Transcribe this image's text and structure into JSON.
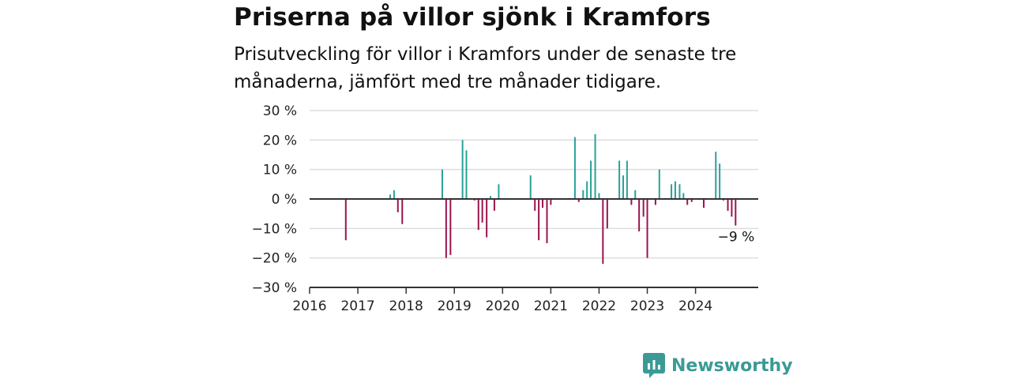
{
  "title": "Priserna på villor sjönk i Kramfors",
  "subtitle": "Prisutveckling för villor i Kramfors under de senaste tre månaderna, jämfört med tre månader tidigare.",
  "brand": {
    "name": "Newsworthy",
    "icon": "newsworthy-logo-icon",
    "color": "#3b9a95"
  },
  "colors": {
    "positive": "#2aa198",
    "negative": "#99144f",
    "grid": "#dddddd",
    "axis": "#333333"
  },
  "chart_data": {
    "type": "bar",
    "x_unit": "year",
    "xlim": [
      2016,
      2025.3
    ],
    "ylim": [
      -30,
      30
    ],
    "y_ticks": [
      {
        "value": 30,
        "label": "30 %"
      },
      {
        "value": 20,
        "label": "20 %"
      },
      {
        "value": 10,
        "label": "10 %"
      },
      {
        "value": 0,
        "label": "0 %"
      },
      {
        "value": -10,
        "label": "−10 %"
      },
      {
        "value": -20,
        "label": "−20 %"
      },
      {
        "value": -30,
        "label": "−30 %"
      }
    ],
    "x_ticks": [
      {
        "value": 2016,
        "label": "2016"
      },
      {
        "value": 2017,
        "label": "2017"
      },
      {
        "value": 2018,
        "label": "2018"
      },
      {
        "value": 2019,
        "label": "2019"
      },
      {
        "value": 2020,
        "label": "2020"
      },
      {
        "value": 2021,
        "label": "2021"
      },
      {
        "value": 2022,
        "label": "2022"
      },
      {
        "value": 2023,
        "label": "2023"
      },
      {
        "value": 2024,
        "label": "2024"
      }
    ],
    "end_label": "−9 %",
    "points": [
      {
        "x": 2016.75,
        "y": -14
      },
      {
        "x": 2017.67,
        "y": 1.5
      },
      {
        "x": 2017.75,
        "y": 3
      },
      {
        "x": 2017.83,
        "y": -4.5
      },
      {
        "x": 2017.92,
        "y": -8.5
      },
      {
        "x": 2018.75,
        "y": 10
      },
      {
        "x": 2018.83,
        "y": -20
      },
      {
        "x": 2018.92,
        "y": -19
      },
      {
        "x": 2019.17,
        "y": 20
      },
      {
        "x": 2019.25,
        "y": 16.5
      },
      {
        "x": 2019.42,
        "y": -0.5
      },
      {
        "x": 2019.5,
        "y": -10.5
      },
      {
        "x": 2019.58,
        "y": -8
      },
      {
        "x": 2019.67,
        "y": -13
      },
      {
        "x": 2019.75,
        "y": 1
      },
      {
        "x": 2019.83,
        "y": -4
      },
      {
        "x": 2019.92,
        "y": 5
      },
      {
        "x": 2020.58,
        "y": 8
      },
      {
        "x": 2020.67,
        "y": -4
      },
      {
        "x": 2020.75,
        "y": -14
      },
      {
        "x": 2020.83,
        "y": -3
      },
      {
        "x": 2020.92,
        "y": -15
      },
      {
        "x": 2021.0,
        "y": -2
      },
      {
        "x": 2021.5,
        "y": 21
      },
      {
        "x": 2021.58,
        "y": -1
      },
      {
        "x": 2021.67,
        "y": 3
      },
      {
        "x": 2021.75,
        "y": 6
      },
      {
        "x": 2021.83,
        "y": 13
      },
      {
        "x": 2021.92,
        "y": 22
      },
      {
        "x": 2022.0,
        "y": 2
      },
      {
        "x": 2022.08,
        "y": -22
      },
      {
        "x": 2022.17,
        "y": -10
      },
      {
        "x": 2022.42,
        "y": 13
      },
      {
        "x": 2022.5,
        "y": 8
      },
      {
        "x": 2022.58,
        "y": 13
      },
      {
        "x": 2022.67,
        "y": -2
      },
      {
        "x": 2022.75,
        "y": 3
      },
      {
        "x": 2022.83,
        "y": -11
      },
      {
        "x": 2022.92,
        "y": -6
      },
      {
        "x": 2023.0,
        "y": -20
      },
      {
        "x": 2023.17,
        "y": -2
      },
      {
        "x": 2023.25,
        "y": 10
      },
      {
        "x": 2023.5,
        "y": 5
      },
      {
        "x": 2023.58,
        "y": 6
      },
      {
        "x": 2023.67,
        "y": 5
      },
      {
        "x": 2023.75,
        "y": 2
      },
      {
        "x": 2023.83,
        "y": -2
      },
      {
        "x": 2023.92,
        "y": -1
      },
      {
        "x": 2024.17,
        "y": -3
      },
      {
        "x": 2024.42,
        "y": 16
      },
      {
        "x": 2024.5,
        "y": 12
      },
      {
        "x": 2024.58,
        "y": -0.5
      },
      {
        "x": 2024.67,
        "y": -4
      },
      {
        "x": 2024.75,
        "y": -6
      },
      {
        "x": 2024.83,
        "y": -9
      }
    ]
  }
}
